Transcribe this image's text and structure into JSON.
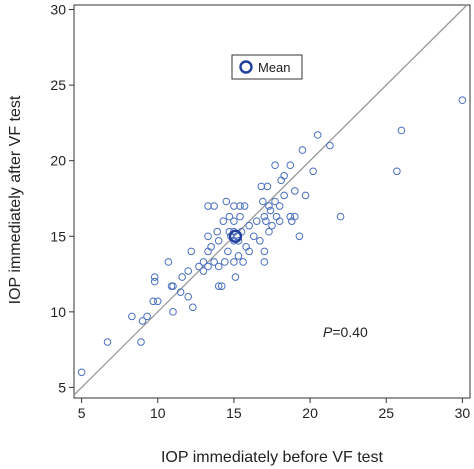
{
  "chart_data": {
    "type": "scatter",
    "title": "",
    "xlabel": "IOP immediately before VF test",
    "ylabel": "IOP immediately after VF test",
    "xlim": [
      4.5,
      30.5
    ],
    "ylim": [
      4.3,
      30.3
    ],
    "xticks": [
      5,
      10,
      15,
      20,
      25,
      30
    ],
    "yticks": [
      5,
      10,
      15,
      20,
      25,
      30
    ],
    "grid": false,
    "legend_position": "top-center",
    "legend": {
      "label": "Mean",
      "color": "#1f3f9e"
    },
    "annotation": {
      "italic": "P",
      "rest": "=0.40"
    },
    "reference_line": {
      "type": "identity",
      "color": "#999999"
    },
    "colors": {
      "points": "#4a6fc1",
      "mean": "#1f3f9e",
      "frame": "#333333"
    },
    "mean_point": {
      "x": 15.1,
      "y": 15.0
    },
    "points": [
      {
        "x": 5.0,
        "y": 6.0
      },
      {
        "x": 6.7,
        "y": 8.0
      },
      {
        "x": 8.3,
        "y": 9.7
      },
      {
        "x": 8.9,
        "y": 8.0
      },
      {
        "x": 9.0,
        "y": 9.4
      },
      {
        "x": 9.3,
        "y": 9.7
      },
      {
        "x": 9.7,
        "y": 10.7
      },
      {
        "x": 9.8,
        "y": 12.0
      },
      {
        "x": 9.8,
        "y": 12.3
      },
      {
        "x": 10.0,
        "y": 10.7
      },
      {
        "x": 10.7,
        "y": 13.3
      },
      {
        "x": 10.9,
        "y": 11.7
      },
      {
        "x": 11.0,
        "y": 10.0
      },
      {
        "x": 11.0,
        "y": 11.7
      },
      {
        "x": 11.5,
        "y": 11.3
      },
      {
        "x": 11.6,
        "y": 12.3
      },
      {
        "x": 12.0,
        "y": 11.0
      },
      {
        "x": 12.0,
        "y": 12.7
      },
      {
        "x": 12.2,
        "y": 14.0
      },
      {
        "x": 12.3,
        "y": 10.3
      },
      {
        "x": 12.7,
        "y": 13.0
      },
      {
        "x": 13.0,
        "y": 12.7
      },
      {
        "x": 13.0,
        "y": 13.3
      },
      {
        "x": 13.3,
        "y": 13.0
      },
      {
        "x": 13.3,
        "y": 14.0
      },
      {
        "x": 13.3,
        "y": 15.0
      },
      {
        "x": 13.3,
        "y": 17.0
      },
      {
        "x": 13.5,
        "y": 14.3
      },
      {
        "x": 13.7,
        "y": 13.3
      },
      {
        "x": 13.7,
        "y": 17.0
      },
      {
        "x": 13.9,
        "y": 15.3
      },
      {
        "x": 14.0,
        "y": 11.7
      },
      {
        "x": 14.0,
        "y": 13.0
      },
      {
        "x": 14.0,
        "y": 14.7
      },
      {
        "x": 14.2,
        "y": 11.7
      },
      {
        "x": 14.3,
        "y": 16.0
      },
      {
        "x": 14.4,
        "y": 13.3
      },
      {
        "x": 14.5,
        "y": 17.3
      },
      {
        "x": 14.6,
        "y": 14.0
      },
      {
        "x": 14.7,
        "y": 15.3
      },
      {
        "x": 14.7,
        "y": 16.3
      },
      {
        "x": 14.8,
        "y": 15.0
      },
      {
        "x": 15.0,
        "y": 13.3
      },
      {
        "x": 15.0,
        "y": 14.7
      },
      {
        "x": 15.0,
        "y": 15.3
      },
      {
        "x": 15.0,
        "y": 16.0
      },
      {
        "x": 15.0,
        "y": 17.0
      },
      {
        "x": 15.1,
        "y": 12.3
      },
      {
        "x": 15.2,
        "y": 15.0
      },
      {
        "x": 15.3,
        "y": 13.7
      },
      {
        "x": 15.3,
        "y": 14.7
      },
      {
        "x": 15.4,
        "y": 16.3
      },
      {
        "x": 15.4,
        "y": 17.0
      },
      {
        "x": 15.5,
        "y": 15.3
      },
      {
        "x": 15.6,
        "y": 13.3
      },
      {
        "x": 15.7,
        "y": 17.0
      },
      {
        "x": 15.8,
        "y": 14.3
      },
      {
        "x": 16.0,
        "y": 15.7
      },
      {
        "x": 16.0,
        "y": 14.0
      },
      {
        "x": 16.3,
        "y": 15.0
      },
      {
        "x": 16.5,
        "y": 16.0
      },
      {
        "x": 16.7,
        "y": 14.7
      },
      {
        "x": 16.8,
        "y": 18.3
      },
      {
        "x": 16.9,
        "y": 17.3
      },
      {
        "x": 17.0,
        "y": 16.3
      },
      {
        "x": 17.0,
        "y": 13.3
      },
      {
        "x": 17.0,
        "y": 14.0
      },
      {
        "x": 17.1,
        "y": 16.0
      },
      {
        "x": 17.2,
        "y": 18.3
      },
      {
        "x": 17.3,
        "y": 15.3
      },
      {
        "x": 17.3,
        "y": 17.0
      },
      {
        "x": 17.4,
        "y": 16.7
      },
      {
        "x": 17.5,
        "y": 15.7
      },
      {
        "x": 17.7,
        "y": 17.3
      },
      {
        "x": 17.7,
        "y": 19.7
      },
      {
        "x": 17.8,
        "y": 16.3
      },
      {
        "x": 18.0,
        "y": 17.0
      },
      {
        "x": 18.0,
        "y": 16.0
      },
      {
        "x": 18.1,
        "y": 18.7
      },
      {
        "x": 18.3,
        "y": 19.0
      },
      {
        "x": 18.3,
        "y": 17.7
      },
      {
        "x": 18.7,
        "y": 16.3
      },
      {
        "x": 18.7,
        "y": 19.7
      },
      {
        "x": 18.8,
        "y": 16.0
      },
      {
        "x": 19.0,
        "y": 18.0
      },
      {
        "x": 19.0,
        "y": 16.3
      },
      {
        "x": 19.3,
        "y": 15.0
      },
      {
        "x": 19.5,
        "y": 20.7
      },
      {
        "x": 19.7,
        "y": 17.7
      },
      {
        "x": 20.2,
        "y": 19.3
      },
      {
        "x": 20.5,
        "y": 21.7
      },
      {
        "x": 21.3,
        "y": 21.0
      },
      {
        "x": 22.0,
        "y": 16.3
      },
      {
        "x": 25.7,
        "y": 19.3
      },
      {
        "x": 26.0,
        "y": 22.0
      },
      {
        "x": 30.0,
        "y": 24.0
      }
    ]
  }
}
